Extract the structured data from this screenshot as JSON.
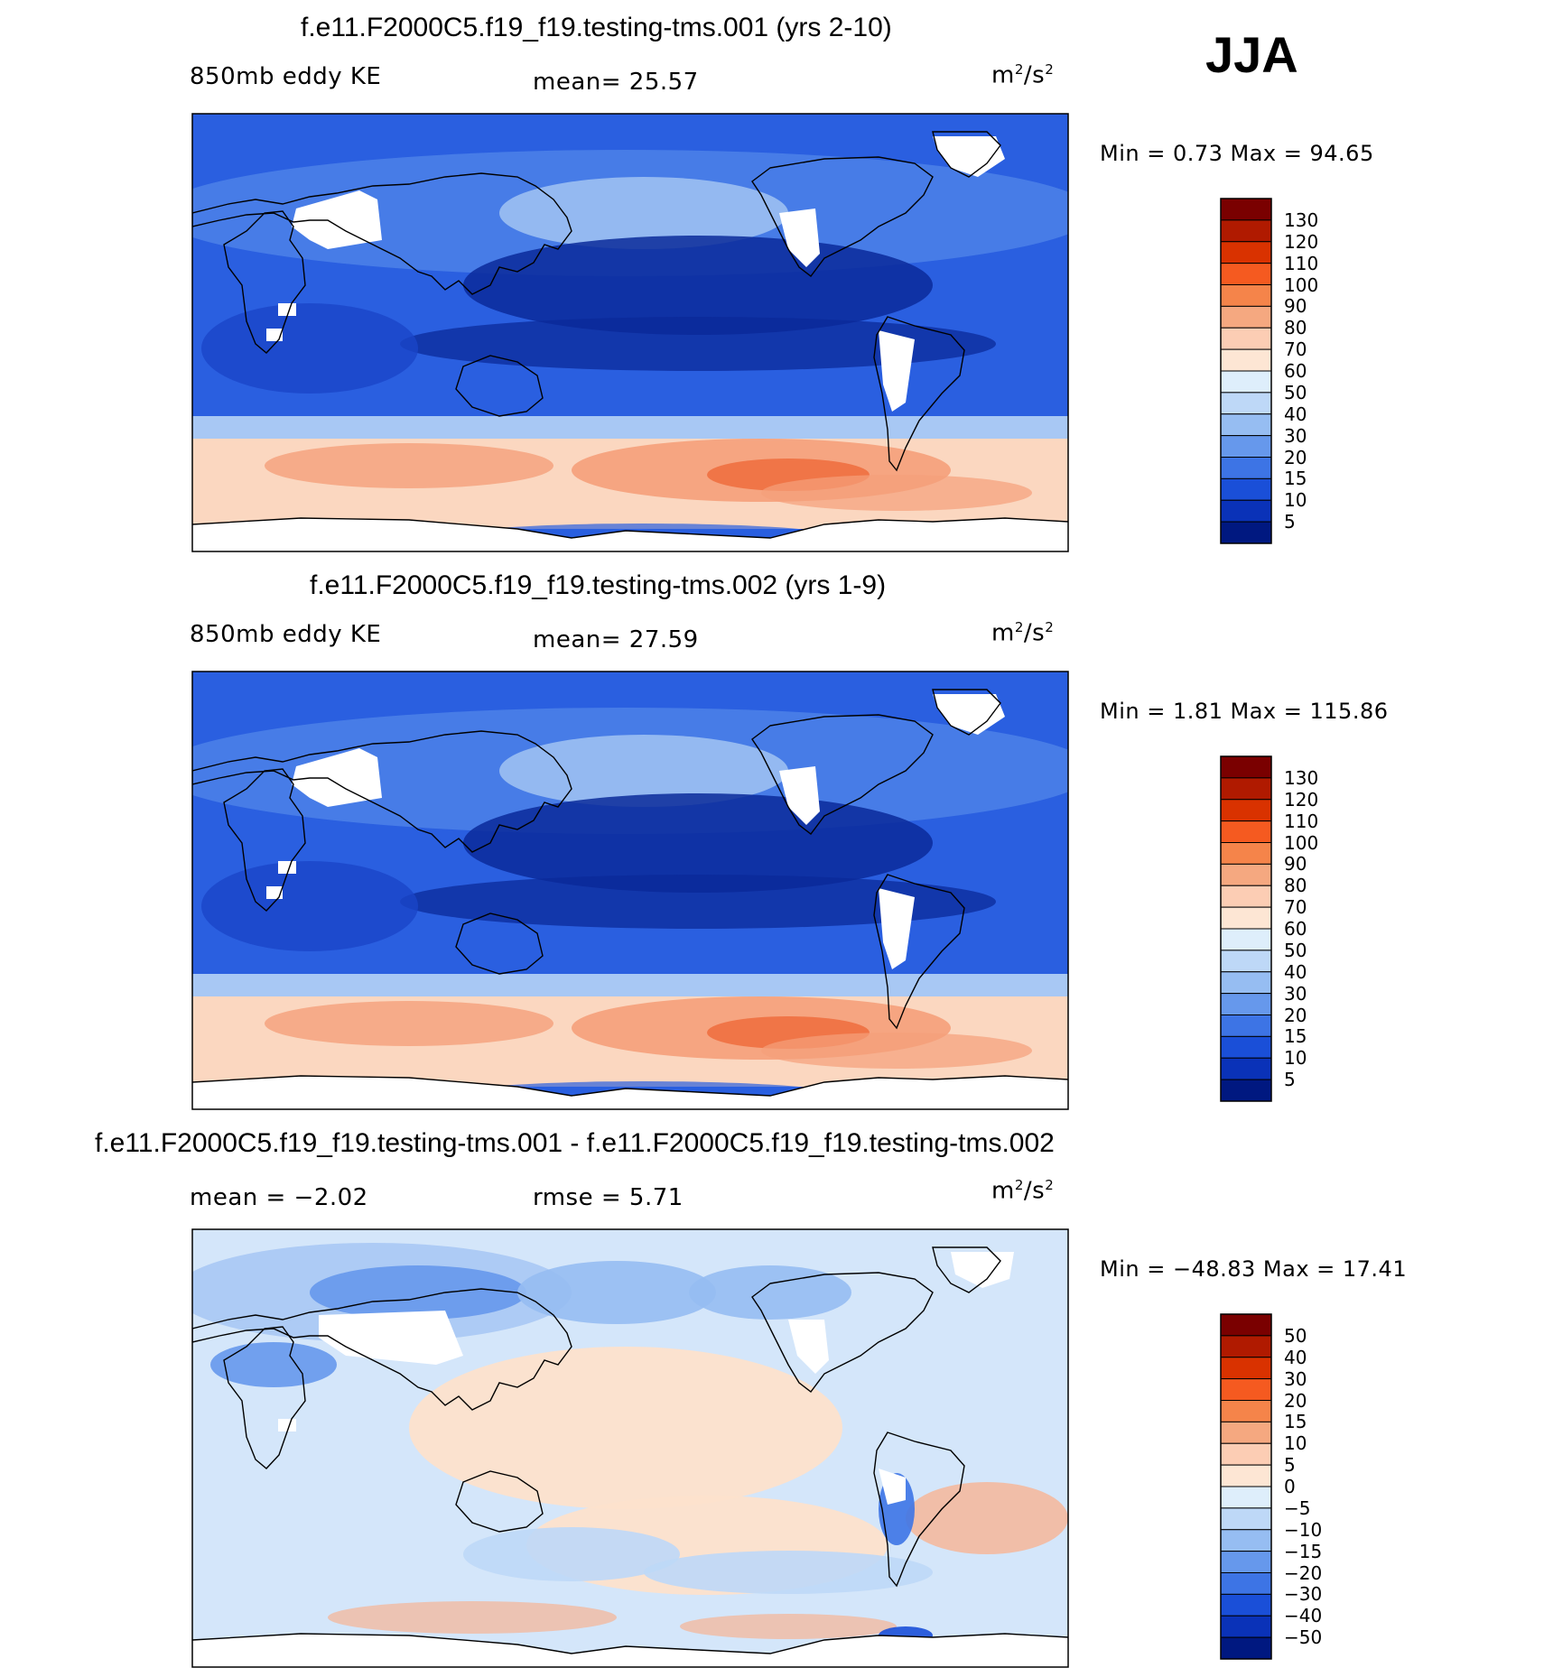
{
  "season": "JJA",
  "panels": [
    {
      "title": "f.e11.F2000C5.f19_f19.testing-tms.001 (yrs 2-10)",
      "left_label": "850mb eddy KE",
      "center_label": "mean=   25.57",
      "units_base": "m",
      "units_exp1": "2",
      "units_mid": "/s",
      "units_exp2": "2",
      "minmax": "Min =    0.73 Max =   94.65",
      "colorbar_labels": [
        "130",
        "120",
        "110",
        "100",
        "90",
        "80",
        "70",
        "60",
        "50",
        "40",
        "30",
        "20",
        "15",
        "10",
        "5"
      ]
    },
    {
      "title": "f.e11.F2000C5.f19_f19.testing-tms.002 (yrs 1-9)",
      "left_label": "850mb eddy KE",
      "center_label": "mean=   27.59",
      "units_base": "m",
      "units_exp1": "2",
      "units_mid": "/s",
      "units_exp2": "2",
      "minmax": "Min =    1.81 Max = 115.86",
      "colorbar_labels": [
        "130",
        "120",
        "110",
        "100",
        "90",
        "80",
        "70",
        "60",
        "50",
        "40",
        "30",
        "20",
        "15",
        "10",
        "5"
      ]
    },
    {
      "title": "f.e11.F2000C5.f19_f19.testing-tms.001 - f.e11.F2000C5.f19_f19.testing-tms.002",
      "left_label": "mean =   −2.02",
      "center_label": "rmse =    5.71",
      "units_base": "m",
      "units_exp1": "2",
      "units_mid": "/s",
      "units_exp2": "2",
      "minmax": "Min = −48.83 Max =   17.41",
      "colorbar_labels": [
        "50",
        "40",
        "30",
        "20",
        "15",
        "10",
        "5",
        "0",
        "−5",
        "−10",
        "−15",
        "−20",
        "−30",
        "−40",
        "−50"
      ]
    }
  ],
  "colors": {
    "colorbar": [
      "#7a0000",
      "#b01a00",
      "#d93200",
      "#f55a20",
      "#f5844a",
      "#f5a880",
      "#fccdb4",
      "#fde6d4",
      "#deeefb",
      "#bed8f7",
      "#96bdf2",
      "#6698ec",
      "#3d74e5",
      "#1a4fd8",
      "#0a32b8",
      "#001880"
    ],
    "ocean_blue": "#2a5fe0",
    "deep_blue": "#0b2a9a",
    "mid_blue": "#4a7fe8",
    "light_blue": "#a8c8f4",
    "peach": "#fbd7c0",
    "salmon": "#f5a07a",
    "orange": "#f07040",
    "diff_bg": "#d4e6fa",
    "diff_peach": "#fde2cc",
    "diff_salmon": "#f7b494"
  },
  "chart_data": [
    {
      "type": "heatmap",
      "title": "f.e11.F2000C5.f19_f19.testing-tms.001 (yrs 2-10)",
      "variable": "850mb eddy KE",
      "units": "m2/s2",
      "mean": 25.57,
      "min": 0.73,
      "max": 94.65,
      "contour_levels": [
        5,
        10,
        15,
        20,
        30,
        40,
        50,
        60,
        70,
        80,
        90,
        100,
        110,
        120,
        130
      ]
    },
    {
      "type": "heatmap",
      "title": "f.e11.F2000C5.f19_f19.testing-tms.002 (yrs 1-9)",
      "variable": "850mb eddy KE",
      "units": "m2/s2",
      "mean": 27.59,
      "min": 1.81,
      "max": 115.86,
      "contour_levels": [
        5,
        10,
        15,
        20,
        30,
        40,
        50,
        60,
        70,
        80,
        90,
        100,
        110,
        120,
        130
      ]
    },
    {
      "type": "heatmap",
      "title": "f.e11.F2000C5.f19_f19.testing-tms.001 - f.e11.F2000C5.f19_f19.testing-tms.002",
      "units": "m2/s2",
      "mean": -2.02,
      "rmse": 5.71,
      "min": -48.83,
      "max": 17.41,
      "contour_levels": [
        -50,
        -40,
        -30,
        -20,
        -15,
        -10,
        -5,
        0,
        5,
        10,
        15,
        20,
        30,
        40,
        50
      ]
    }
  ]
}
